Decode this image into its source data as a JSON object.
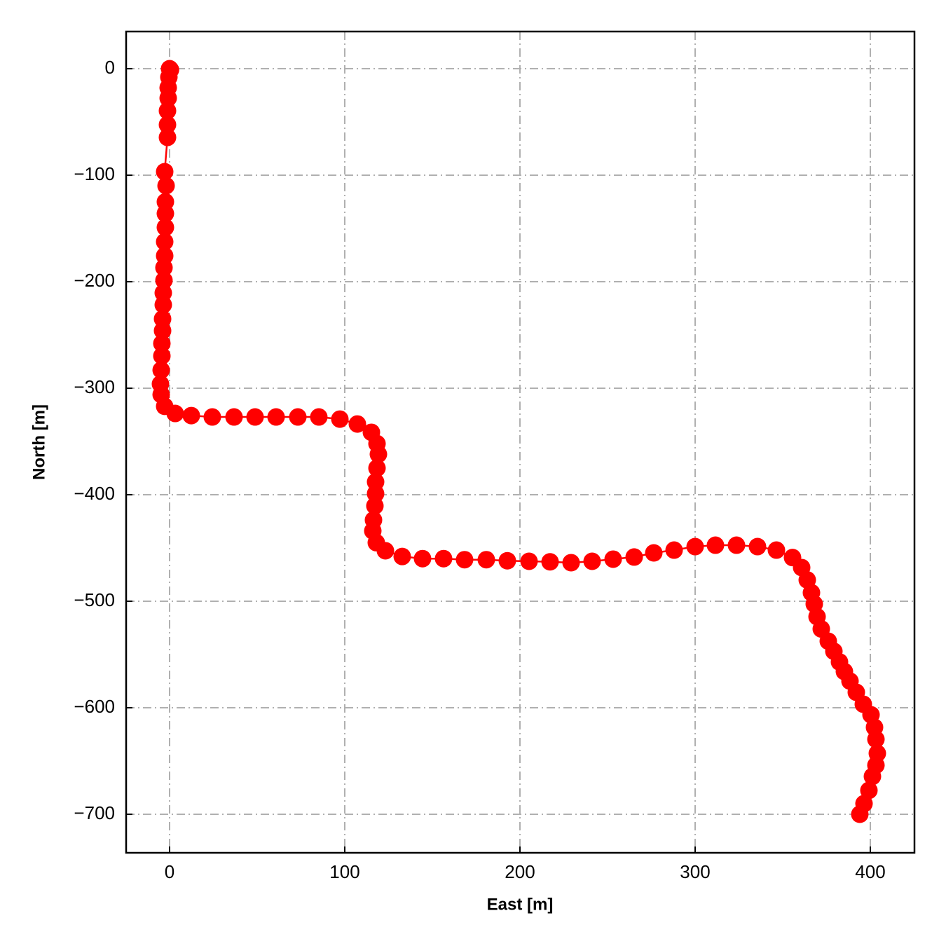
{
  "chart_data": {
    "type": "line",
    "xlabel": "East [m]",
    "ylabel": "North [m]",
    "x": [
      0,
      0.5,
      -0.4,
      -0.8,
      -0.8,
      -1.2,
      -1.2,
      -1.2,
      -2.8,
      -2,
      -2.4,
      -2.4,
      -2.4,
      -2.8,
      -2.8,
      -3.2,
      -3.2,
      -3.6,
      -3.6,
      -4,
      -4,
      -4.4,
      -4.4,
      -4.8,
      -5.2,
      -4.8,
      -2.8,
      3.2,
      12.4,
      24.4,
      36.8,
      48.8,
      60.8,
      73.2,
      85.2,
      97.2,
      107.2,
      115.2,
      118.4,
      119.2,
      118.4,
      117.6,
      117.6,
      117.2,
      116.4,
      116,
      118,
      123.2,
      132.8,
      144.4,
      156.4,
      168.4,
      180.8,
      192.8,
      205.2,
      217.2,
      229.2,
      241.2,
      253.2,
      265.2,
      276.4,
      288,
      300,
      311.6,
      323.6,
      335.6,
      346.4,
      355.6,
      360.8,
      364,
      366.4,
      368,
      369.6,
      372,
      376,
      379.2,
      382.4,
      385.2,
      388.4,
      392,
      396,
      400.4,
      402.4,
      403.2,
      404,
      403.2,
      401.2,
      399.2,
      396.4,
      394
    ],
    "y": [
      0,
      -1,
      -7.9,
      -17.8,
      -27.6,
      -39.5,
      -52.6,
      -64.5,
      -96.7,
      -109.9,
      -125,
      -136,
      -149,
      -162.5,
      -175.7,
      -186.8,
      -198.7,
      -210.5,
      -221.7,
      -234.9,
      -246,
      -258,
      -269.7,
      -283,
      -296,
      -306,
      -317,
      -323.7,
      -325.7,
      -327,
      -327,
      -327,
      -327,
      -327,
      -327,
      -329,
      -333.6,
      -341.4,
      -352,
      -362,
      -375,
      -388,
      -399,
      -410.5,
      -423.7,
      -434,
      -445,
      -452.6,
      -458,
      -460,
      -460,
      -461,
      -461,
      -462,
      -462.5,
      -463,
      -463.8,
      -462.5,
      -460.5,
      -458.5,
      -454.6,
      -452,
      -448.7,
      -447.4,
      -447.4,
      -448.7,
      -452,
      -459,
      -468.4,
      -480,
      -492,
      -502.6,
      -514.5,
      -526,
      -537.5,
      -547,
      -557,
      -566,
      -575,
      -585.5,
      -596.7,
      -606.6,
      -618.4,
      -629.6,
      -642.8,
      -654,
      -664.5,
      -677.6,
      -690,
      -700
    ],
    "color": "#ff0000",
    "marker": "o",
    "xlim": [
      -24.8,
      425.2
    ],
    "xticks": [
      0,
      100,
      200,
      300,
      400
    ],
    "ylim": [
      -736.2,
      34.9
    ],
    "yticks": [
      {
        "value": -700,
        "label": "−700"
      },
      {
        "value": -600,
        "label": "−600"
      },
      {
        "value": -500,
        "label": "−500"
      },
      {
        "value": -400,
        "label": "−400"
      },
      {
        "value": -300,
        "label": "−300"
      },
      {
        "value": -200,
        "label": "−200"
      },
      {
        "value": -100,
        "label": "−100"
      },
      0
    ],
    "grid": true
  }
}
